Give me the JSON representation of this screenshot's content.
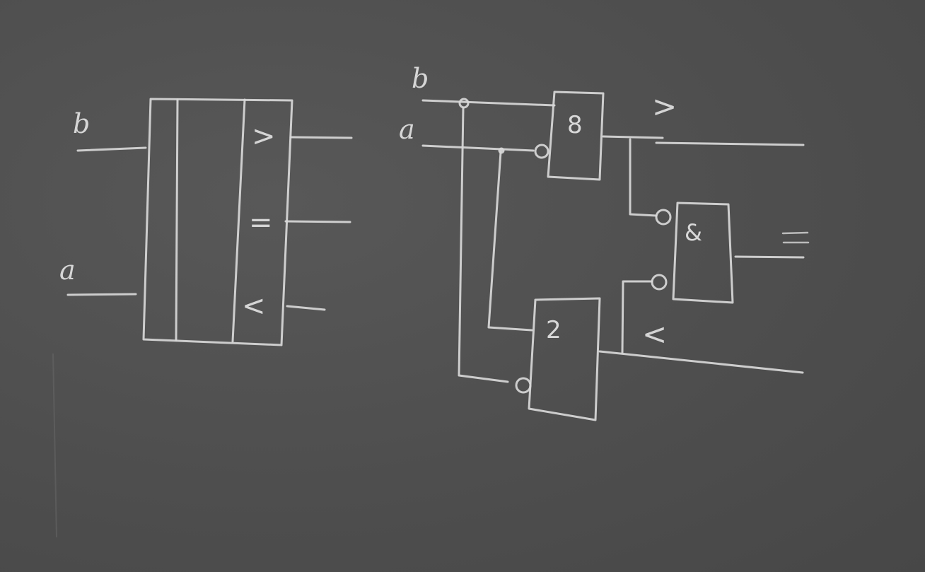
{
  "board": {
    "background": "#4f4f4f",
    "chalk_color": "#d8d8d8"
  },
  "left_block": {
    "input_b": "b",
    "input_a": "a",
    "out_gt": ">",
    "out_eq": "=",
    "out_lt": "<"
  },
  "right_circuit": {
    "input_b": "b",
    "input_a": "a",
    "gate_top": "8",
    "gate_and": "&",
    "gate_bottom": "2",
    "out_gt": ">",
    "out_eq": "=",
    "out_lt": "<"
  }
}
